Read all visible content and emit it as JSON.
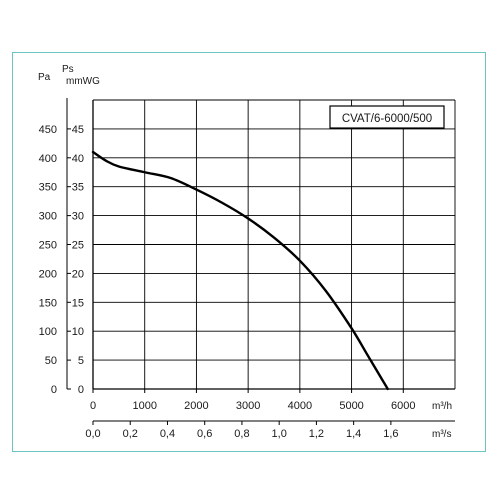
{
  "chart_data": {
    "type": "line",
    "title": "CVAT/6-6000/500",
    "axis_labels": {
      "pa": "Pa",
      "ps": "Ps",
      "mmwg": "mmWG",
      "m3h": "m³/h",
      "m3s": "m³/s"
    },
    "x_ticks_m3h": [
      "0",
      "1000",
      "2000",
      "3000",
      "4000",
      "5000",
      "6000"
    ],
    "x_ticks_m3s": [
      "0,0",
      "0,2",
      "0,4",
      "0,6",
      "0,8",
      "1,0",
      "1,2",
      "1,4",
      "1,6"
    ],
    "y_ticks_pa": [
      "0",
      "50",
      "100",
      "150",
      "200",
      "250",
      "300",
      "350",
      "400",
      "450"
    ],
    "y_ticks_mmwg": [
      "0",
      "5",
      "10",
      "15",
      "20",
      "25",
      "30",
      "35",
      "40",
      "45"
    ],
    "xlim": [
      0,
      7000
    ],
    "ylim": [
      0,
      500
    ],
    "grid": true,
    "series": [
      {
        "color": "#000000",
        "x": [
          0,
          250,
          500,
          1000,
          1500,
          2000,
          2500,
          3000,
          3500,
          4000,
          4500,
          5000,
          5300,
          5600,
          5700
        ],
        "y": [
          410,
          395,
          385,
          375,
          365,
          345,
          322,
          295,
          262,
          222,
          170,
          105,
          60,
          15,
          0
        ]
      }
    ]
  }
}
